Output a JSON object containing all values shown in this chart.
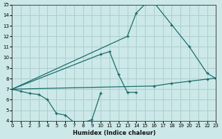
{
  "xlabel": "Humidex (Indice chaleur)",
  "bg_color": "#cce8e8",
  "grid_color": "#aacece",
  "line_color": "#1a6b6b",
  "xlim": [
    0,
    23
  ],
  "ylim": [
    4,
    15
  ],
  "yticks": [
    4,
    5,
    6,
    7,
    8,
    9,
    10,
    11,
    12,
    13,
    14,
    15
  ],
  "xticks": [
    0,
    1,
    2,
    3,
    4,
    5,
    6,
    7,
    8,
    9,
    10,
    11,
    12,
    13,
    14,
    15,
    16,
    17,
    18,
    19,
    20,
    21,
    22,
    23
  ],
  "line1_x": [
    0,
    1,
    2,
    3,
    4,
    5,
    6,
    7,
    8,
    9,
    10
  ],
  "line1_y": [
    7.0,
    6.8,
    6.6,
    6.5,
    6.0,
    4.7,
    4.55,
    3.85,
    3.85,
    4.1,
    6.65
  ],
  "line2_x": [
    0,
    10,
    11,
    12,
    13,
    14
  ],
  "line2_y": [
    7.0,
    10.3,
    10.55,
    8.4,
    6.7,
    6.7
  ],
  "line3_x": [
    0,
    13,
    14,
    15,
    16,
    18,
    20,
    22,
    23
  ],
  "line3_y": [
    7.0,
    12.0,
    14.2,
    15.05,
    15.2,
    13.1,
    11.0,
    8.5,
    8.0
  ],
  "line4_x": [
    0,
    16,
    18,
    20,
    22,
    23
  ],
  "line4_y": [
    7.0,
    7.3,
    7.55,
    7.75,
    7.95,
    8.05
  ]
}
